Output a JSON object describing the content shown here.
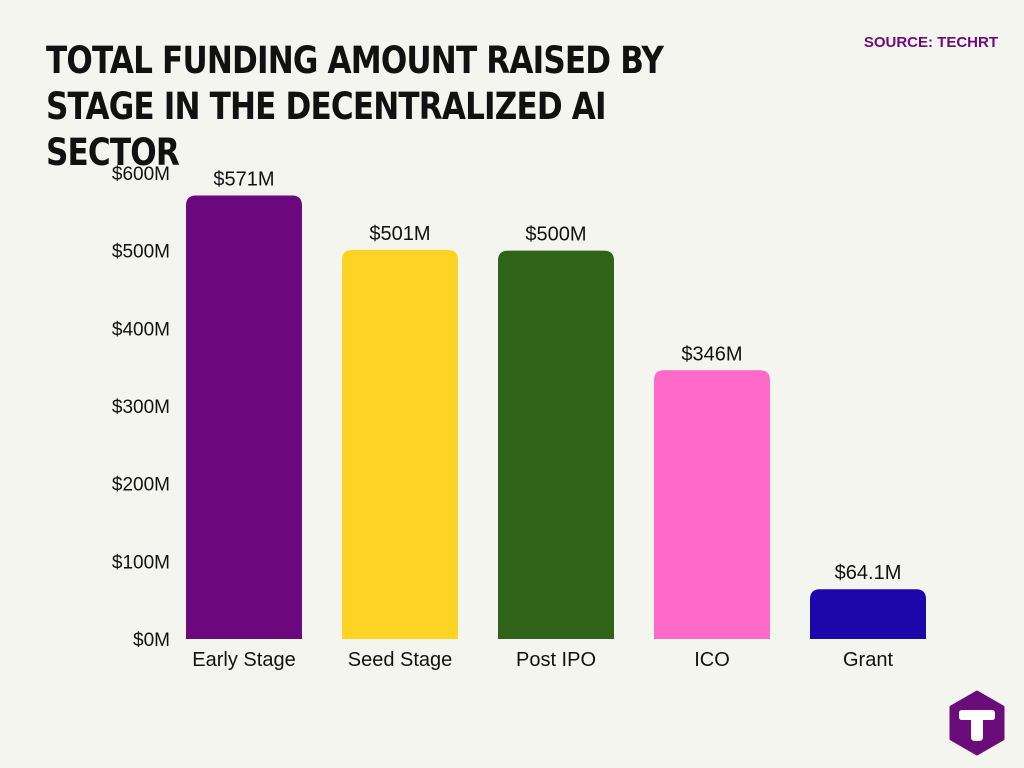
{
  "header": {
    "title": "TOTAL FUNDING AMOUNT RAISED BY STAGE IN THE DECENTRALIZED AI SECTOR",
    "source": "SOURCE: TECHRT"
  },
  "logo": {
    "icon": "techrt-t-logo-icon",
    "color": "#6a0d7a"
  },
  "chart_data": {
    "type": "bar",
    "title": "TOTAL FUNDING AMOUNT RAISED BY STAGE IN THE DECENTRALIZED AI SECTOR",
    "xlabel": "",
    "ylabel": "",
    "categories": [
      "Early Stage",
      "Seed Stage",
      "Post IPO",
      "ICO",
      "Grant"
    ],
    "values": [
      571,
      501,
      500,
      346,
      64.1
    ],
    "value_labels": [
      "$571M",
      "$501M",
      "$500M",
      "$346M",
      "$64.1M"
    ],
    "colors": [
      "#6b087d",
      "#fed324",
      "#2f6418",
      "#ff6ac8",
      "#1e07aa"
    ],
    "ylim": [
      0,
      600
    ],
    "yticks": [
      0,
      100,
      200,
      300,
      400,
      500,
      600
    ],
    "ytick_labels": [
      "$0M",
      "$100M",
      "$200M",
      "$300M",
      "$400M",
      "$500M",
      "$600M"
    ],
    "grid": false,
    "legend": "none"
  }
}
